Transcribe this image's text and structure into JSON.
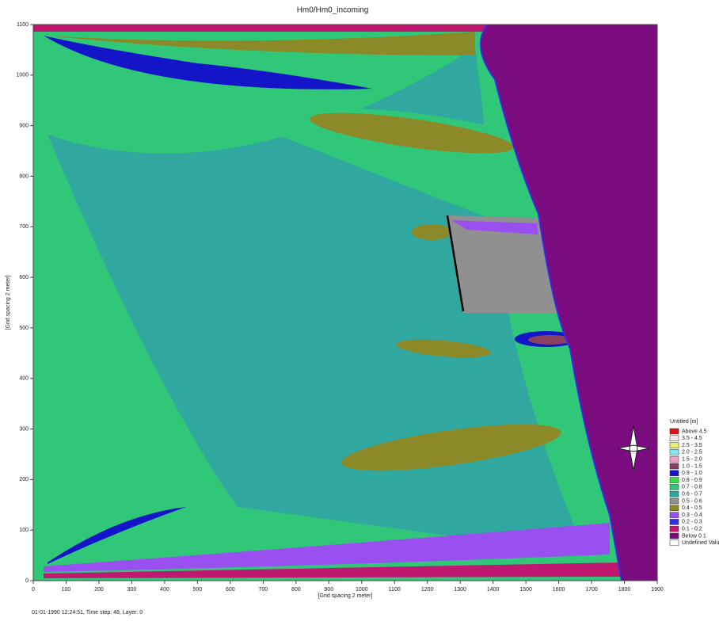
{
  "chart_data": {
    "type": "contour",
    "title": "Hm0/Hm0_incoming",
    "xlabel": "[Grid spacing 2 meter]",
    "ylabel": "[Grid spacing 2 meter]",
    "footer": "01-01-1990 12:24:51, Time step: 48, Layer: 0",
    "xlim": [
      0,
      1900
    ],
    "ylim": [
      0,
      1100
    ],
    "xticks": [
      0,
      100,
      200,
      300,
      400,
      500,
      600,
      700,
      800,
      900,
      1000,
      1100,
      1200,
      1300,
      1400,
      1500,
      1600,
      1700,
      1800,
      1900
    ],
    "yticks": [
      0,
      100,
      200,
      300,
      400,
      500,
      600,
      700,
      800,
      900,
      1000,
      1100
    ],
    "legend": {
      "title": "Untitled [m]",
      "items": [
        {
          "label": "Above 4.5",
          "color": "#e01010"
        },
        {
          "label": "3.5 - 4.5",
          "color": "#f4e8e8"
        },
        {
          "label": "2.5 - 3.5",
          "color": "#e8f070"
        },
        {
          "label": "2.0 - 2.5",
          "color": "#7fe8f0"
        },
        {
          "label": "1.5 - 2.0",
          "color": "#f0a0c8"
        },
        {
          "label": "1.0 - 1.5",
          "color": "#8a4060"
        },
        {
          "label": "0.9 - 1.0",
          "color": "#1414c8"
        },
        {
          "label": "0.8 - 0.9",
          "color": "#36e040"
        },
        {
          "label": "0.7 - 0.8",
          "color": "#30c878"
        },
        {
          "label": "0.6 - 0.7",
          "color": "#30a8a0"
        },
        {
          "label": "0.5 - 0.6",
          "color": "#909090"
        },
        {
          "label": "0.4 - 0.5",
          "color": "#8c8a28"
        },
        {
          "label": "0.3 - 0.4",
          "color": "#9a50f0"
        },
        {
          "label": "0.2 - 0.3",
          "color": "#3030e0"
        },
        {
          "label": "0.1 - 0.2",
          "color": "#c01870"
        },
        {
          "label": "Below 0.1",
          "color": "#7a0c80"
        },
        {
          "label": "Undefined Value",
          "color": "#ffffff"
        }
      ]
    }
  }
}
